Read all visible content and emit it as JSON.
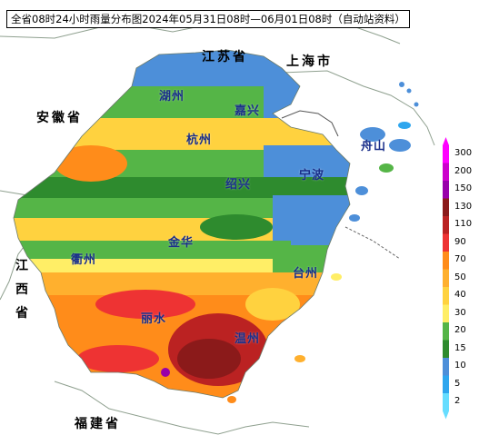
{
  "title": "全省08时24小时雨量分布图2024年05月31日08时—06月01日08时（自动站资料）",
  "provinces": {
    "jiangsu": "江苏省",
    "shanghai": "上海市",
    "anhui": "安徽省",
    "jiangxi": "江西省",
    "fujian": "福建省"
  },
  "cities": {
    "huzhou": "湖州",
    "jiaxing": "嘉兴",
    "hangzhou": "杭州",
    "shaoxing": "绍兴",
    "ningbo": "宁波",
    "zhoushan": "舟山",
    "jinhua": "金华",
    "quzhou": "衢州",
    "taizhou": "台州",
    "lishui": "丽水",
    "wenzhou": "温州"
  },
  "legend": {
    "levels": [
      "300",
      "200",
      "150",
      "130",
      "110",
      "90",
      "70",
      "50",
      "40",
      "30",
      "20",
      "15",
      "10",
      "5",
      "2"
    ],
    "colors": [
      "#ff00ff",
      "#cc00cc",
      "#9900aa",
      "#8b1a1a",
      "#bb2222",
      "#ee3333",
      "#ff8c1a",
      "#ffb02e",
      "#ffd23f",
      "#ffee66",
      "#55b547",
      "#2e8b2e",
      "#4d8fd9",
      "#2ea6ee",
      "#66ddff"
    ]
  }
}
